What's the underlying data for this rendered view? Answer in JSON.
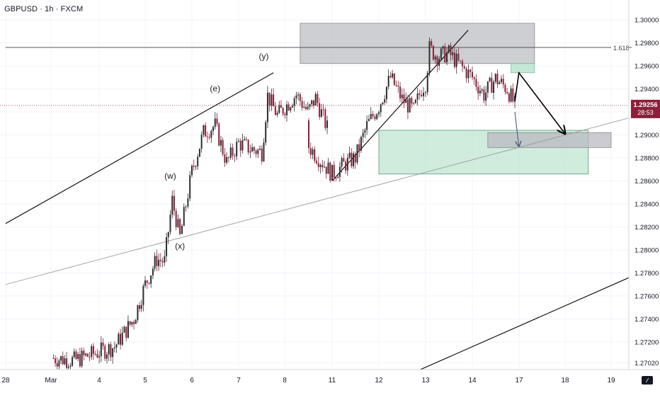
{
  "header": {
    "symbol_title": "GBPUSD · 1h · FXCM"
  },
  "colors": {
    "bull": "#2d2d2d",
    "bear": "#8e1e3a",
    "trendline": "#000000",
    "thin_trendline": "#9a9a9a",
    "resistance_zone": "#b9bac1",
    "support_zone": "#bfe6d1",
    "current_price_badge": "#8e1e3a"
  },
  "chart_data": {
    "type": "candlestick",
    "title": "GBPUSD · 1h · FXCM",
    "x_tick_labels": [
      "28",
      "Mar",
      "4",
      "5",
      "6",
      "7",
      "8",
      "11",
      "12",
      "13",
      "14",
      "17",
      "18",
      "19"
    ],
    "y_tick_labels": [
      "1.30000",
      "1.29800",
      "1.29600",
      "1.29400",
      "1.29200",
      "1.29000",
      "1.28800",
      "1.28600",
      "1.28400",
      "1.28200",
      "1.28000",
      "1.27800",
      "1.27600",
      "1.27400",
      "1.27200",
      "1.27020"
    ],
    "ylim": [
      1.2691,
      1.3014
    ],
    "current_price": {
      "value": "1.29256",
      "countdown": "28:53"
    },
    "fib_level": {
      "label": "1.618",
      "price": 1.2976
    },
    "wave_labels": [
      {
        "label": "(e)",
        "date": "Mar 6 12:00",
        "price": 1.2938
      },
      {
        "label": "(y)",
        "date": "Mar 7 13:00",
        "price": 1.2966
      },
      {
        "label": "(w)",
        "date": "Mar 5 13:00",
        "price": 1.2862
      },
      {
        "label": "(x)",
        "date": "Mar 5 18:00",
        "price": 1.2801
      }
    ],
    "zones": [
      {
        "name": "resistance-zone",
        "from": "Mar 8 08:00",
        "to": "Mar 17 08:00",
        "top": 1.2997,
        "bottom": 1.2962
      },
      {
        "name": "target-zone-upper",
        "from": "Mar 14 20:00",
        "to": "Mar 17 08:00",
        "top": 1.2962,
        "bottom": 1.2954
      },
      {
        "name": "support-zone",
        "from": "Mar 12 00:00",
        "to": "Mar 18 12:00",
        "top": 1.2904,
        "bottom": 1.2866
      },
      {
        "name": "target-zone-lower",
        "from": "Mar 14 08:00",
        "to": "Mar 19 00:00",
        "top": 1.2902,
        "bottom": 1.2889
      }
    ],
    "trendlines": [
      {
        "name": "upper-channel-line",
        "from": [
          "Feb 28 00:00",
          1.2823
        ],
        "to": [
          "Mar 7 18:00",
          1.2954
        ],
        "style": "thick"
      },
      {
        "name": "lower-channel-line",
        "from": [
          "Mar 12 16:00",
          1.2692
        ],
        "to": [
          "Mar 19 12:00",
          1.2778
        ],
        "style": "thick"
      },
      {
        "name": "wedge-support-line",
        "from": [
          "Mar 11 00:00",
          1.286
        ],
        "to": [
          "Mar 13 22:00",
          1.2991
        ],
        "style": "thick"
      },
      {
        "name": "long-support-line",
        "from": [
          "Feb 28 00:00",
          1.277
        ],
        "to": [
          "Mar 19 12:00",
          1.2916
        ],
        "style": "thin"
      },
      {
        "name": "fib-1618-line",
        "from": [
          "Feb 28 00:00",
          1.2976
        ],
        "to": [
          "Mar 19 00:00",
          1.2976
        ],
        "style": "thin"
      }
    ],
    "projection_paths": [
      {
        "name": "primary-projection",
        "points": [
          [
            "Mar 14 22:00",
            1.2929
          ],
          [
            "Mar 15 12:00",
            1.2954
          ],
          [
            "Mar 18 00:00",
            1.2901
          ]
        ]
      },
      {
        "name": "alternate-projection",
        "points": [
          [
            "Mar 14 22:00",
            1.292
          ],
          [
            "Mar 15 12:00",
            1.289
          ]
        ]
      }
    ],
    "series": [
      {
        "name": "GBPUSD",
        "anchors": [
          [
            "Feb 29 12:00",
            1.2706
          ],
          [
            "Mar 1 12:00",
            1.2704
          ],
          [
            "Mar 4 08:00",
            1.2716
          ],
          [
            "Mar 4 18:00",
            1.274
          ],
          [
            "Mar 5 00:00",
            1.277
          ],
          [
            "Mar 5 06:00",
            1.2792
          ],
          [
            "Mar 5 10:00",
            1.279
          ],
          [
            "Mar 5 14:00",
            1.2843
          ],
          [
            "Mar 5 18:00",
            1.2811
          ],
          [
            "Mar 6 00:00",
            1.2868
          ],
          [
            "Mar 6 06:00",
            1.2902
          ],
          [
            "Mar 6 12:00",
            1.2908
          ],
          [
            "Mar 6 18:00",
            1.2876
          ],
          [
            "Mar 7 00:00",
            1.2893
          ],
          [
            "Mar 7 06:00",
            1.2888
          ],
          [
            "Mar 7 12:00",
            1.2885
          ],
          [
            "Mar 7 15:00",
            1.2934
          ],
          [
            "Mar 7 20:00",
            1.2917
          ],
          [
            "Mar 8 06:00",
            1.2935
          ],
          [
            "Mar 8 12:00",
            1.292
          ],
          [
            "Mar 8 16:00",
            1.2932
          ],
          [
            "Mar 8 22:00",
            1.2906
          ],
          [
            "Mar 9 00:00",
            1.289
          ],
          [
            "Mar 11 00:00",
            1.2866
          ],
          [
            "Mar 11 06:00",
            1.2874
          ],
          [
            "Mar 11 12:00",
            1.288
          ],
          [
            "Mar 11 18:00",
            1.2908
          ],
          [
            "Mar 12 00:00",
            1.2925
          ],
          [
            "Mar 12 06:00",
            1.295
          ],
          [
            "Mar 12 12:00",
            1.2931
          ],
          [
            "Mar 12 18:00",
            1.2921
          ],
          [
            "Mar 12 22:00",
            1.294
          ],
          [
            "Mar 13 00:00",
            1.2945
          ],
          [
            "Mar 13 02:00",
            1.2975
          ],
          [
            "Mar 13 06:00",
            1.2968
          ],
          [
            "Mar 13 12:00",
            1.2971
          ],
          [
            "Mar 13 18:00",
            1.296
          ],
          [
            "Mar 14 00:00",
            1.295
          ],
          [
            "Mar 14 06:00",
            1.2935
          ],
          [
            "Mar 14 12:00",
            1.2949
          ],
          [
            "Mar 14 18:00",
            1.294
          ],
          [
            "Mar 14 22:00",
            1.2926
          ]
        ]
      }
    ],
    "grid": true
  }
}
